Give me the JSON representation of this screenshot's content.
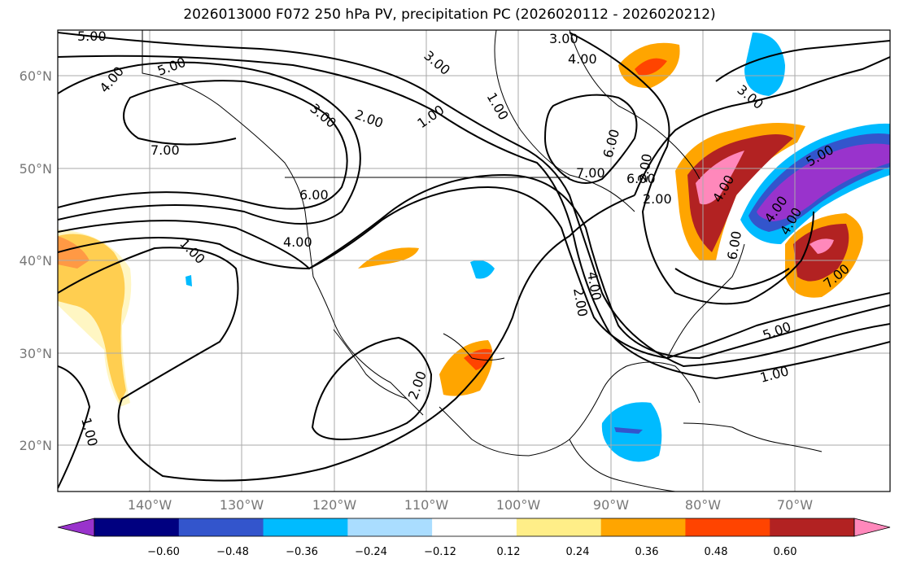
{
  "title": "2026013000 F072 250 hPa PV, precipitation PC (2026020112 - 2026020212)",
  "lat_labels": [
    "60°N",
    "50°N",
    "40°N",
    "30°N",
    "20°N"
  ],
  "lon_labels": [
    "140°W",
    "130°W",
    "120°W",
    "110°W",
    "100°W",
    "90°W",
    "80°W",
    "70°W"
  ],
  "colorbar": {
    "colors": [
      "#9933cc",
      "#000080",
      "#3355cc",
      "#00bbff",
      "#aaddff",
      "#ffffff",
      "#ffee88",
      "#ffa500",
      "#ff4400",
      "#b22222",
      "#ff88bb"
    ],
    "tick_labels": [
      "−0.60",
      "−0.48",
      "−0.36",
      "−0.24",
      "−0.12",
      "0.12",
      "0.24",
      "0.36",
      "0.48",
      "0.60"
    ]
  },
  "contour_labels": [
    "5.00",
    "4.00",
    "5.00",
    "3.00",
    "2.00",
    "1.00",
    "7.00",
    "6.00",
    "4.00",
    "1.00",
    "1.00",
    "3.00",
    "3.00",
    "4.00",
    "6.00",
    "7.00",
    "4.00",
    "2.00",
    "2.00",
    "2.00",
    "4.00",
    "6.00",
    "3.00",
    "4.00",
    "5.00",
    "4.00",
    "7.00",
    "5.00",
    "1.00",
    "6.00",
    "1.00",
    "2.00"
  ]
}
